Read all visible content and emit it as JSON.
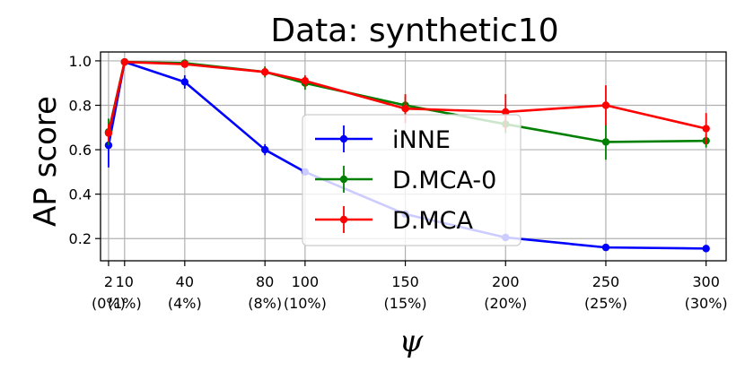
{
  "chart_data": {
    "type": "line",
    "title": "Data: synthetic10",
    "xlabel": "ψ",
    "ylabel": "AP score",
    "grid": true,
    "legend": "center",
    "xlim": [
      -2,
      310
    ],
    "ylim": [
      0.1,
      1.04
    ],
    "x": [
      2,
      10,
      40,
      80,
      100,
      150,
      200,
      250,
      300
    ],
    "x_tick_labels": [
      {
        "value": 2,
        "top": "2",
        "bottom": "(0%)"
      },
      {
        "value": 10,
        "top": "10",
        "bottom": "(1%)"
      },
      {
        "value": 40,
        "top": "40",
        "bottom": "(4%)"
      },
      {
        "value": 80,
        "top": "80",
        "bottom": "(8%)"
      },
      {
        "value": 100,
        "top": "100",
        "bottom": "(10%)"
      },
      {
        "value": 150,
        "top": "150",
        "bottom": "(15%)"
      },
      {
        "value": 200,
        "top": "200",
        "bottom": "(20%)"
      },
      {
        "value": 250,
        "top": "250",
        "bottom": "(25%)"
      },
      {
        "value": 300,
        "top": "300",
        "bottom": "(30%)"
      }
    ],
    "y_ticks": [
      0.2,
      0.4,
      0.6,
      0.8,
      1.0
    ],
    "y_tick_labels": [
      "0.2",
      "0.4",
      "0.6",
      "0.8",
      "1.0"
    ],
    "series": [
      {
        "name": "iNNE",
        "color": "#0000ff",
        "values": [
          0.62,
          0.995,
          0.905,
          0.6,
          0.5,
          0.31,
          0.205,
          0.16,
          0.155
        ],
        "errors": [
          0.1,
          0.005,
          0.03,
          0.025,
          0.01,
          0.01,
          0.01,
          0.005,
          0.005
        ]
      },
      {
        "name": "D.MCA-0",
        "color": "#008000",
        "values": [
          0.68,
          0.995,
          0.99,
          0.95,
          0.9,
          0.8,
          0.715,
          0.635,
          0.64
        ],
        "errors": [
          0.06,
          0.005,
          0.01,
          0.025,
          0.03,
          0.04,
          0.04,
          0.08,
          0.03
        ]
      },
      {
        "name": "D.MCA",
        "color": "#ff0000",
        "values": [
          0.675,
          0.995,
          0.985,
          0.95,
          0.91,
          0.785,
          0.77,
          0.8,
          0.695
        ],
        "errors": [
          0.04,
          0.005,
          0.01,
          0.02,
          0.025,
          0.065,
          0.08,
          0.09,
          0.07
        ]
      }
    ]
  }
}
